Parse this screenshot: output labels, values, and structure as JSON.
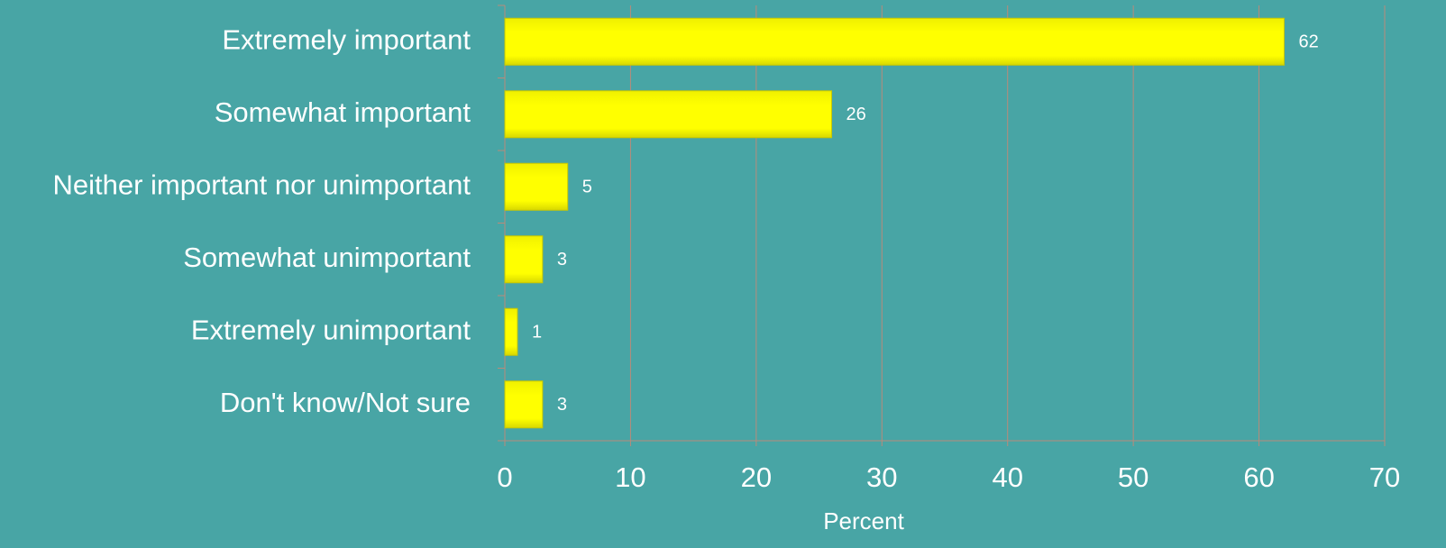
{
  "chart_data": {
    "type": "barh",
    "categories": [
      "Extremely important",
      "Somewhat important",
      "Neither important nor unimportant",
      "Somewhat unimportant",
      "Extremely unimportant",
      "Don't know/Not sure"
    ],
    "values": [
      62,
      26,
      5,
      3,
      1,
      3
    ],
    "color": "#ffff00",
    "xlabel": "Percent",
    "xlim": [
      0,
      70
    ],
    "xticks": [
      0,
      10,
      20,
      30,
      40,
      50,
      60,
      70
    ],
    "grid": true
  }
}
